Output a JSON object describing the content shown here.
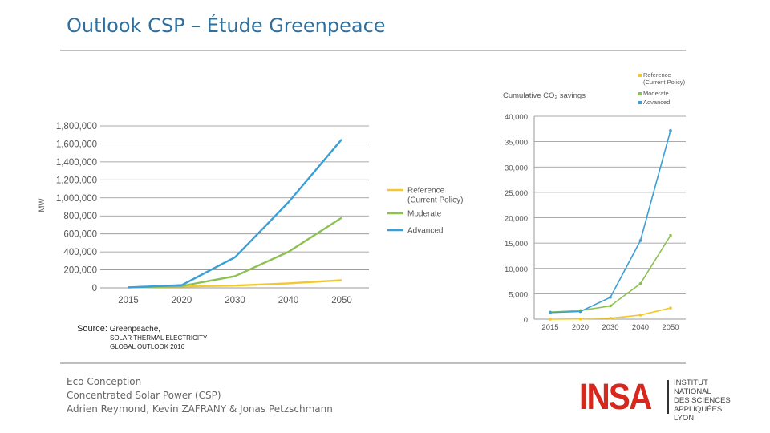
{
  "slide": {
    "title": "Outlook CSP – Étude Greenpeace",
    "source_label": "Source:",
    "source_line1": "Greenpeache,",
    "source_line2": "SOLAR THERMAL ELECTRICITY",
    "source_line3": "GLOBAL OUTLOOK 2016",
    "footer_line1": "Eco Conception",
    "footer_line2": "Concentrated Solar Power (CSP)",
    "footer_line3": "Adrien Reymond, Kevin ZAFRANY & Jonas Petzschmann",
    "logo_wordmark": "INSA",
    "logo_text": [
      "INSTITUT NATIONAL",
      "DES SCIENCES",
      "APPLIQUÉES",
      "LYON"
    ]
  },
  "colors": {
    "reference": "#f2c82a",
    "moderate": "#8cc152",
    "advanced": "#3a9fd6",
    "title": "#2e6f9e",
    "brand": "#d7281e"
  },
  "chart_data": [
    {
      "type": "line",
      "ylabel": "MW",
      "xlabel": "",
      "x": [
        "2015",
        "2020",
        "2030",
        "2040",
        "2050"
      ],
      "ylim": [
        0,
        1800000
      ],
      "yticks": [
        "0",
        "200,000",
        "400,000",
        "600,000",
        "800,000",
        "1,000,000",
        "1,200,000",
        "1,400,000",
        "1,600,000",
        "1,800,000"
      ],
      "grid": true,
      "legend_position": "right",
      "series": [
        {
          "name": "Reference (Current Policy)",
          "color_key": "reference",
          "values": [
            5000,
            15000,
            25000,
            50000,
            85000
          ]
        },
        {
          "name": "Moderate",
          "color_key": "moderate",
          "values": [
            5000,
            20000,
            130000,
            400000,
            780000
          ]
        },
        {
          "name": "Advanced",
          "color_key": "advanced",
          "values": [
            5000,
            30000,
            340000,
            950000,
            1650000
          ]
        }
      ]
    },
    {
      "type": "line",
      "title": "Cumulative CO₂ savings",
      "xlabel": "",
      "ylabel": "",
      "x": [
        "2015",
        "2020",
        "2030",
        "2040",
        "2050"
      ],
      "ylim": [
        0,
        40000
      ],
      "yticks": [
        "0",
        "5,000",
        "10,000",
        "15,000",
        "20,000",
        "25,000",
        "30,000",
        "35,000",
        "40,000"
      ],
      "grid": true,
      "legend_position": "top-right",
      "series": [
        {
          "name": "Reference (Current Policy)",
          "color_key": "reference",
          "values": [
            0,
            50,
            200,
            800,
            2200
          ]
        },
        {
          "name": "Moderate",
          "color_key": "moderate",
          "values": [
            1400,
            1700,
            2600,
            7000,
            16500
          ]
        },
        {
          "name": "Advanced",
          "color_key": "advanced",
          "values": [
            1300,
            1500,
            4300,
            15500,
            37200
          ]
        }
      ]
    }
  ]
}
